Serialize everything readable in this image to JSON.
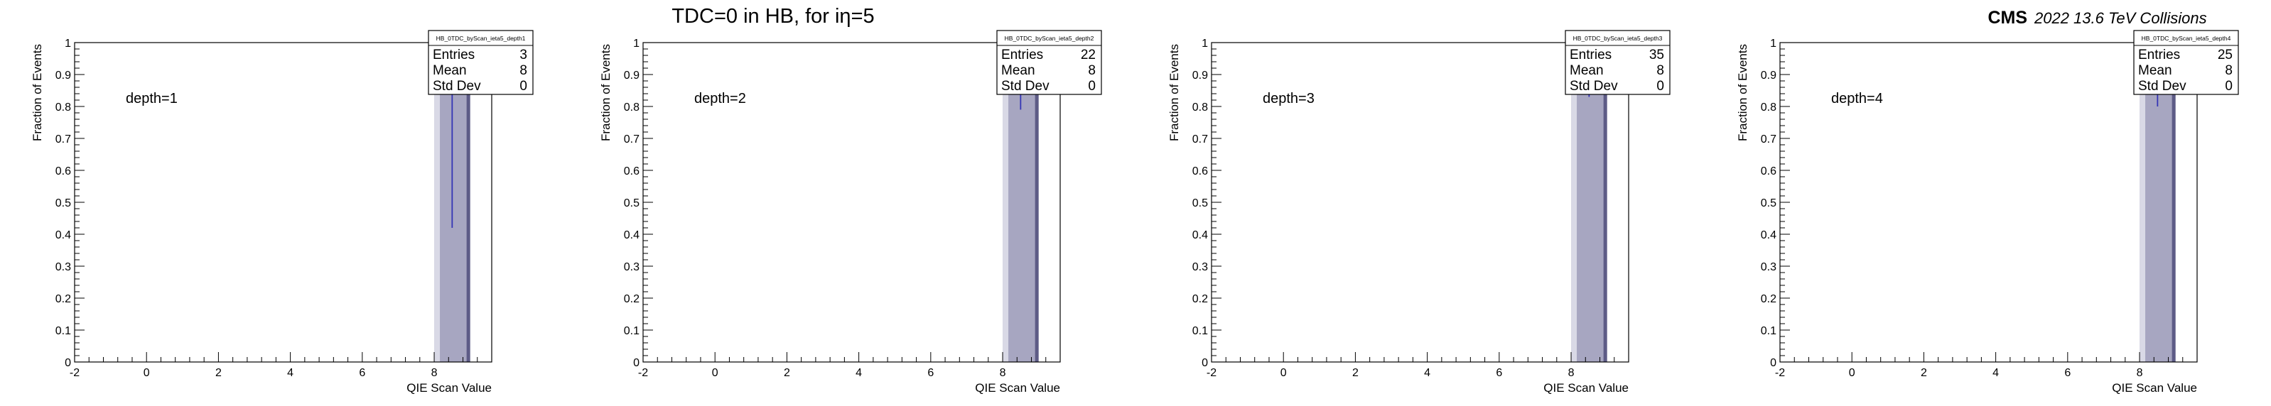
{
  "header": {
    "title": "TDC=0 in HB, for iη=5",
    "cms_label": "CMS",
    "collision_info": "2022 13.6 TeV Collisions"
  },
  "chart_data": [
    {
      "type": "bar",
      "title": "depth=1",
      "xlabel": "QIE Scan Value",
      "ylabel": "Fraction of Events",
      "xlim": [
        -2,
        9.6
      ],
      "ylim": [
        0,
        1
      ],
      "x_ticks": [
        -2,
        0,
        2,
        4,
        6,
        8
      ],
      "y_ticks": [
        0,
        0.1,
        0.2,
        0.3,
        0.4,
        0.5,
        0.6,
        0.7,
        0.8,
        0.9,
        1
      ],
      "bins": [
        {
          "x_low": 8,
          "x_high": 9,
          "value": 1.0,
          "error": 0.58
        }
      ],
      "stats": {
        "name": "HB_0TDC_byScan_ieta5_depth1",
        "entries": "3",
        "mean": "8",
        "std_dev": "0"
      }
    },
    {
      "type": "bar",
      "title": "depth=2",
      "xlabel": "QIE Scan Value",
      "ylabel": "Fraction of Events",
      "xlim": [
        -2,
        9.6
      ],
      "ylim": [
        0,
        1
      ],
      "x_ticks": [
        -2,
        0,
        2,
        4,
        6,
        8
      ],
      "y_ticks": [
        0,
        0.1,
        0.2,
        0.3,
        0.4,
        0.5,
        0.6,
        0.7,
        0.8,
        0.9,
        1
      ],
      "bins": [
        {
          "x_low": 8,
          "x_high": 9,
          "value": 1.0,
          "error": 0.21
        }
      ],
      "stats": {
        "name": "HB_0TDC_byScan_ieta5_depth2",
        "entries": "22",
        "mean": "8",
        "std_dev": "0"
      }
    },
    {
      "type": "bar",
      "title": "depth=3",
      "xlabel": "QIE Scan Value",
      "ylabel": "Fraction of Events",
      "xlim": [
        -2,
        9.6
      ],
      "ylim": [
        0,
        1
      ],
      "x_ticks": [
        -2,
        0,
        2,
        4,
        6,
        8
      ],
      "y_ticks": [
        0,
        0.1,
        0.2,
        0.3,
        0.4,
        0.5,
        0.6,
        0.7,
        0.8,
        0.9,
        1
      ],
      "bins": [
        {
          "x_low": 8,
          "x_high": 9,
          "value": 1.0,
          "error": 0.17
        }
      ],
      "stats": {
        "name": "HB_0TDC_byScan_ieta5_depth3",
        "entries": "35",
        "mean": "8",
        "std_dev": "0"
      }
    },
    {
      "type": "bar",
      "title": "depth=4",
      "xlabel": "QIE Scan Value",
      "ylabel": "Fraction of Events",
      "xlim": [
        -2,
        9.6
      ],
      "ylim": [
        0,
        1
      ],
      "x_ticks": [
        -2,
        0,
        2,
        4,
        6,
        8
      ],
      "y_ticks": [
        0,
        0.1,
        0.2,
        0.3,
        0.4,
        0.5,
        0.6,
        0.7,
        0.8,
        0.9,
        1
      ],
      "bins": [
        {
          "x_low": 8,
          "x_high": 9,
          "value": 1.0,
          "error": 0.2
        }
      ],
      "stats": {
        "name": "HB_0TDC_byScan_ieta5_depth4",
        "entries": "25",
        "mean": "8",
        "std_dev": "0"
      }
    }
  ],
  "stat_labels": {
    "entries": "Entries",
    "mean": "Mean",
    "std_dev": "Std Dev"
  },
  "colors": {
    "fill": "#a7a6c1",
    "fill_edge": "#5d5b86",
    "error_bar": "#3535b5",
    "axis": "#000000"
  }
}
